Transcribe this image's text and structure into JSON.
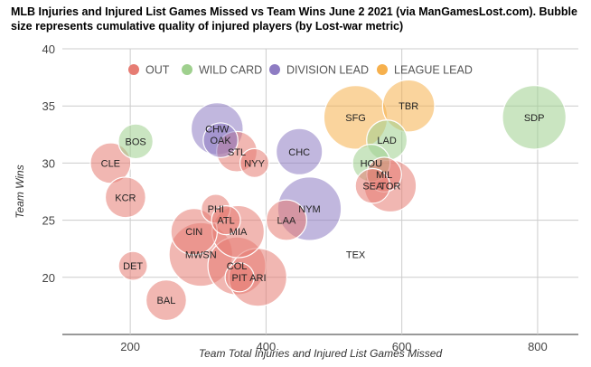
{
  "chart_data": {
    "type": "bubble",
    "title": "MLB Injuries and Injured List Games Missed vs Team Wins June 2 2021 (via ManGamesLost.com). Bubble size represents cumulative quality of injured players (by Lost-war metric)",
    "xlabel": "Team Total Injuries and Injured List Games Missed",
    "ylabel": "Team Wins",
    "xlim": [
      100,
      860
    ],
    "ylim": [
      15,
      40
    ],
    "x_ticks": [
      200,
      400,
      600,
      800
    ],
    "y_ticks": [
      20,
      25,
      30,
      35,
      40
    ],
    "grid": true,
    "legend_position": "top",
    "series": [
      {
        "name": "OUT",
        "color": "#e67c73"
      },
      {
        "name": "WILD CARD",
        "color": "#9fd08e"
      },
      {
        "name": "DIVISION LEAD",
        "color": "#8e7cc3"
      },
      {
        "name": "LEAGUE LEAD",
        "color": "#f6b04d"
      }
    ],
    "points": [
      {
        "team": "CLE",
        "x": 171,
        "y": 30,
        "size": 1.4,
        "series": "OUT"
      },
      {
        "team": "BOS",
        "x": 208,
        "y": 31.9,
        "size": 1.2,
        "series": "WILD CARD"
      },
      {
        "team": "KCR",
        "x": 193,
        "y": 27,
        "size": 1.4,
        "series": "OUT"
      },
      {
        "team": "DET",
        "x": 204,
        "y": 21,
        "size": 1.0,
        "series": "OUT"
      },
      {
        "team": "BAL",
        "x": 253,
        "y": 18,
        "size": 1.4,
        "series": "OUT"
      },
      {
        "team": "CHW",
        "x": 328,
        "y": 33,
        "size": 1.8,
        "series": "DIVISION LEAD"
      },
      {
        "team": "OAK",
        "x": 333,
        "y": 32,
        "size": 1.2,
        "series": "DIVISION LEAD"
      },
      {
        "team": "STL",
        "x": 357,
        "y": 31,
        "size": 1.4,
        "series": "OUT"
      },
      {
        "team": "NYY",
        "x": 383,
        "y": 30,
        "size": 1.0,
        "series": "OUT"
      },
      {
        "team": "PHI",
        "x": 326,
        "y": 26,
        "size": 1.0,
        "series": "OUT"
      },
      {
        "team": "ATL",
        "x": 341,
        "y": 25,
        "size": 1.0,
        "series": "OUT"
      },
      {
        "team": "CIN",
        "x": 294,
        "y": 24,
        "size": 1.6,
        "series": "OUT"
      },
      {
        "team": "MIA",
        "x": 359,
        "y": 24,
        "size": 1.8,
        "series": "OUT"
      },
      {
        "team": "MWSN",
        "x": 304,
        "y": 22,
        "size": 2.2,
        "series": "OUT"
      },
      {
        "team": "COL",
        "x": 357,
        "y": 21,
        "size": 2.0,
        "series": "OUT"
      },
      {
        "team": "PIT",
        "x": 361,
        "y": 20,
        "size": 1.0,
        "series": "OUT"
      },
      {
        "team": "ARI",
        "x": 388,
        "y": 20,
        "size": 2.0,
        "series": "OUT"
      },
      {
        "team": "CHC",
        "x": 449,
        "y": 31,
        "size": 1.6,
        "series": "DIVISION LEAD"
      },
      {
        "team": "LAA",
        "x": 430,
        "y": 25,
        "size": 1.4,
        "series": "OUT"
      },
      {
        "team": "NYM",
        "x": 464,
        "y": 26,
        "size": 2.2,
        "series": "DIVISION LEAD"
      },
      {
        "team": "TEX",
        "x": 532,
        "y": 22,
        "size": 0,
        "series": "OUT"
      },
      {
        "team": "SFG",
        "x": 532,
        "y": 34,
        "size": 2.2,
        "series": "LEAGUE LEAD"
      },
      {
        "team": "TBR",
        "x": 610,
        "y": 35,
        "size": 1.8,
        "series": "LEAGUE LEAD"
      },
      {
        "team": "SDP",
        "x": 795,
        "y": 34,
        "size": 2.2,
        "series": "WILD CARD"
      },
      {
        "team": "LAD",
        "x": 578,
        "y": 32,
        "size": 1.4,
        "series": "WILD CARD"
      },
      {
        "team": "HOU",
        "x": 555,
        "y": 30,
        "size": 1.3,
        "series": "WILD CARD"
      },
      {
        "team": "MIL",
        "x": 574,
        "y": 29,
        "size": 1.2,
        "series": "OUT"
      },
      {
        "team": "SEA",
        "x": 557,
        "y": 28,
        "size": 1.2,
        "series": "OUT"
      },
      {
        "team": "TOR",
        "x": 583,
        "y": 28,
        "size": 1.8,
        "series": "OUT"
      }
    ]
  }
}
